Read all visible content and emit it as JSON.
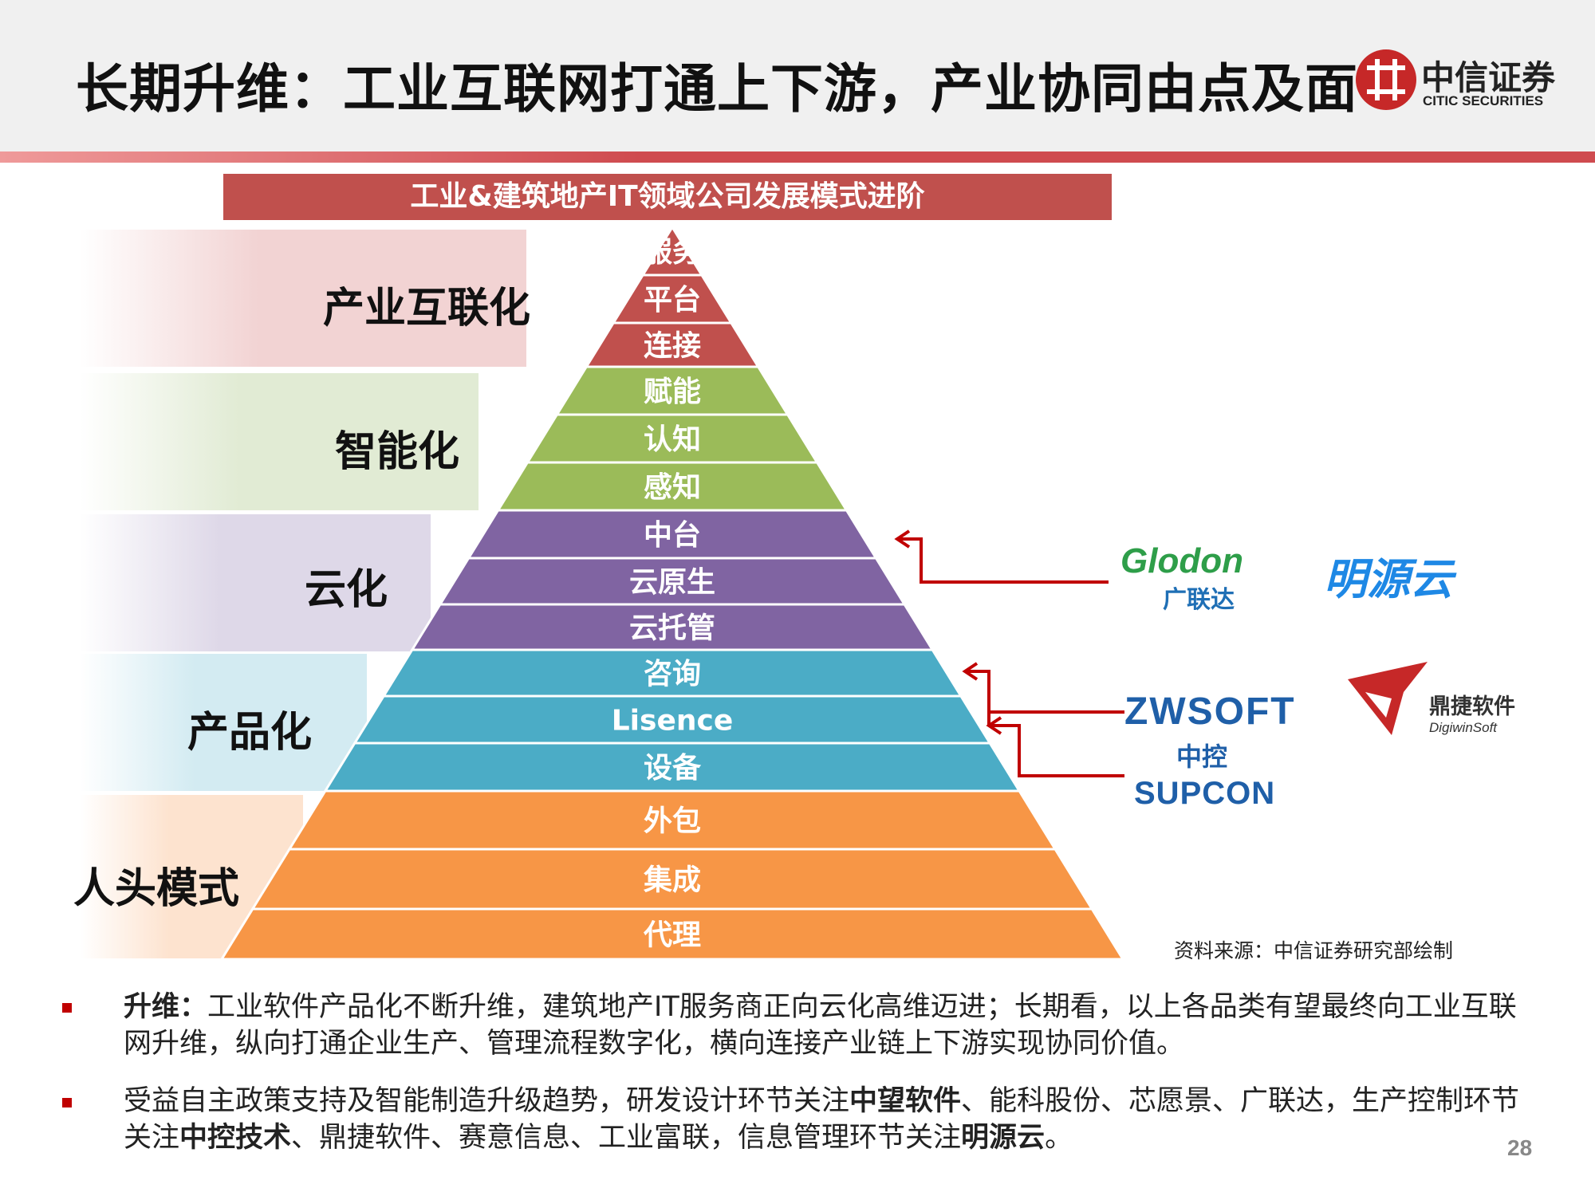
{
  "header": {
    "title": "长期升维：工业互联网打通上下游，产业协同由点及面",
    "logo_zh": "中信证券",
    "logo_en": "CITIC SECURITIES"
  },
  "chart_title": "工业&建筑地产IT领域公司发展模式进阶",
  "tiers": [
    {
      "label": "产业互联化",
      "color": "#c0504d",
      "band_color": "#f2d3d3",
      "layers": [
        "服务",
        "平台",
        "连接"
      ]
    },
    {
      "label": "智能化",
      "color": "#9bbb59",
      "band_color": "#e1ebd4",
      "layers": [
        "赋能",
        "认知",
        "感知"
      ]
    },
    {
      "label": "云化",
      "color": "#8064a2",
      "band_color": "#ded8e8",
      "layers": [
        "中台",
        "云原生",
        "云托管"
      ]
    },
    {
      "label": "产品化",
      "color": "#4bacc6",
      "band_color": "#d3ebf2",
      "layers": [
        "咨询",
        "Lisence",
        "设备"
      ]
    },
    {
      "label": "人头模式",
      "color": "#f79646",
      "band_color": "#fde3cf",
      "layers": [
        "外包",
        "集成",
        "代理"
      ]
    }
  ],
  "logos": {
    "glodon": "Glodon",
    "glodon_zh": "广联达",
    "mingyuan": "明源云",
    "zwsoft": "ZWSOFT",
    "dingjie_zh": "鼎捷软件",
    "dingjie_en": "DigiwinSoft",
    "supcon_zh": "中控",
    "supcon_en": "SUPCON"
  },
  "source": "资料来源：中信证券研究部绘制",
  "bullets": [
    {
      "lead": "升维：",
      "text": "工业软件产品化不断升维，建筑地产IT服务商正向云化高维迈进；长期看，以上各品类有望最终向工业互联网升维，纵向打通企业生产、管理流程数字化，横向连接产业链上下游实现协同价值。"
    },
    {
      "p1": "受益自主政策支持及智能制造升级趋势，研发设计环节关注",
      "b1": "中望软件",
      "p2": "、能科股份、芯愿景、广联达，生产控制环节关注",
      "b2": "中控技术",
      "p3": "、鼎捷软件、赛意信息、工业富联，信息管理环节关注",
      "b3": "明源云",
      "p4": "。"
    }
  ],
  "page_number": "28",
  "colors": {
    "accent_red": "#c0504d",
    "arrow_red": "#c00000"
  }
}
